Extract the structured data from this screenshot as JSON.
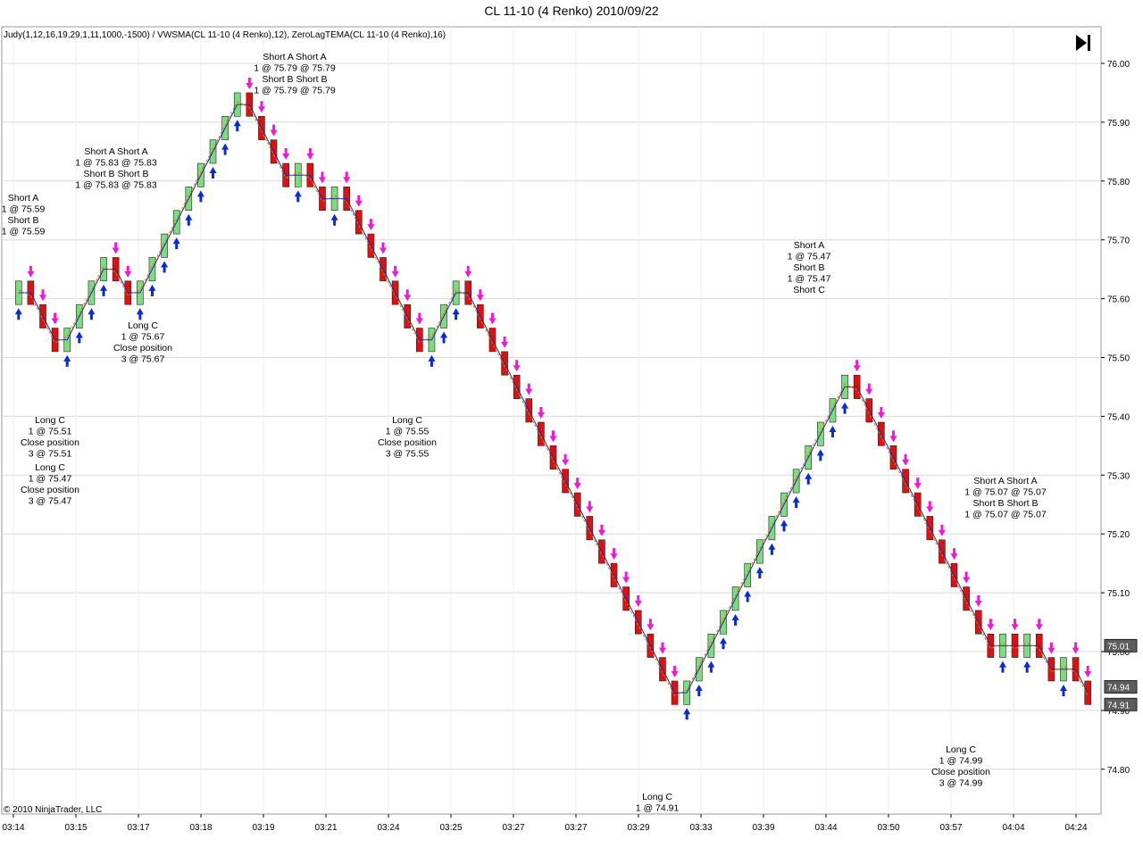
{
  "window": {
    "title": "CL 11-10 (4 Renko)  2010/09/22",
    "indicators_label": "Judy(1,12,16,19,29,1,11,1000,-1500) / VWSMA(CL 11-10 (4 Renko),12), ZeroLagTEMA(CL 11-10 (4 Renko),16)",
    "copyright": "© 2010 NinjaTrader, LLC",
    "skip_to_end_icon": "skip-to-end-icon"
  },
  "colors": {
    "up_bar": "#7ddc7d",
    "down_bar": "#e01010",
    "long_arrow": "#0a2ad8",
    "short_arrow": "#f018d8",
    "vwsma_line": "#1a2ab0",
    "zerolag_line": "#d47a00",
    "grid": "#d8d8d8",
    "price_box": "#5c5c5c"
  },
  "chart_data": {
    "type": "candlestick",
    "instrument": "CL 11-10 (4 Renko)",
    "date": "2010/09/22",
    "bar_size": 0.04,
    "ylim": [
      74.75,
      76.05
    ],
    "y_ticks": [
      "76.00",
      "75.90",
      "75.80",
      "75.70",
      "75.60",
      "75.50",
      "75.40",
      "75.30",
      "75.20",
      "75.10",
      "75.00",
      "74.90",
      "74.80"
    ],
    "x_ticks": [
      "03:14",
      "03:15",
      "03:17",
      "03:18",
      "03:19",
      "03:21",
      "03:24",
      "03:25",
      "03:27",
      "03:27",
      "03:29",
      "03:33",
      "03:39",
      "03:44",
      "03:50",
      "03:57",
      "04:04",
      "04:24"
    ],
    "price_markers": [
      "75.01",
      "74.94",
      "74.91"
    ],
    "closes": [
      75.63,
      75.59,
      75.55,
      75.51,
      75.55,
      75.59,
      75.63,
      75.67,
      75.63,
      75.59,
      75.63,
      75.67,
      75.71,
      75.75,
      75.79,
      75.83,
      75.87,
      75.91,
      75.95,
      75.91,
      75.87,
      75.83,
      75.79,
      75.83,
      75.79,
      75.75,
      75.79,
      75.75,
      75.71,
      75.67,
      75.63,
      75.59,
      75.55,
      75.51,
      75.55,
      75.59,
      75.63,
      75.59,
      75.55,
      75.51,
      75.47,
      75.43,
      75.39,
      75.35,
      75.31,
      75.27,
      75.23,
      75.19,
      75.15,
      75.11,
      75.07,
      75.03,
      74.99,
      74.95,
      74.91,
      74.95,
      74.99,
      75.03,
      75.07,
      75.11,
      75.15,
      75.19,
      75.23,
      75.27,
      75.31,
      75.35,
      75.39,
      75.43,
      75.47,
      75.43,
      75.39,
      75.35,
      75.31,
      75.27,
      75.23,
      75.19,
      75.15,
      75.11,
      75.07,
      75.03,
      74.99,
      75.03,
      74.99,
      75.03,
      74.99,
      74.95,
      74.99,
      74.95,
      74.91
    ],
    "labels": [
      {
        "lines": [
          "Short A",
          "1 @ 75.59",
          "Short B",
          "1 @ 75.59"
        ],
        "x": 26,
        "y": 225
      },
      {
        "lines": [
          "Long C",
          "1 @ 75.47",
          "Close position",
          "3 @ 75.47"
        ],
        "x": 56,
        "y": 527
      },
      {
        "lines": [
          "Long C",
          "1 @ 75.51",
          "Close position",
          "3 @ 75.51"
        ],
        "x": 56,
        "y": 474
      },
      {
        "lines": [
          "Short A Short A",
          "1 @ 75.83 @ 75.83",
          "Short B Short B",
          "1 @ 75.83 @ 75.83"
        ],
        "x": 130,
        "y": 173
      },
      {
        "lines": [
          "Long C",
          "1 @ 75.67",
          "Close position",
          "3 @ 75.67"
        ],
        "x": 160,
        "y": 368
      },
      {
        "lines": [
          "Short A Short A",
          "1 @ 75.79 @ 75.79",
          "Short B Short B",
          "1 @ 75.79 @ 75.79"
        ],
        "x": 330,
        "y": 67
      },
      {
        "lines": [
          "Short A",
          "1 @ 75.47",
          "Short B",
          "1 @ 75.47",
          "Short C"
        ],
        "x": 906,
        "y": 278
      },
      {
        "lines": [
          "Long C",
          "1 @ 75.55",
          "Close position",
          "3 @ 75.55"
        ],
        "x": 456,
        "y": 474
      },
      {
        "lines": [
          "Short A Short A",
          "1 @ 75.07 @ 75.07",
          "Short B Short B",
          "1 @ 75.07 @ 75.07"
        ],
        "x": 1126,
        "y": 542
      },
      {
        "lines": [
          "Long C",
          "1 @ 74.99",
          "Close position",
          "3 @ 74.99"
        ],
        "x": 1076,
        "y": 843
      },
      {
        "lines": [
          "Long C",
          "1 @ 74.91"
        ],
        "x": 736,
        "y": 896
      }
    ]
  }
}
